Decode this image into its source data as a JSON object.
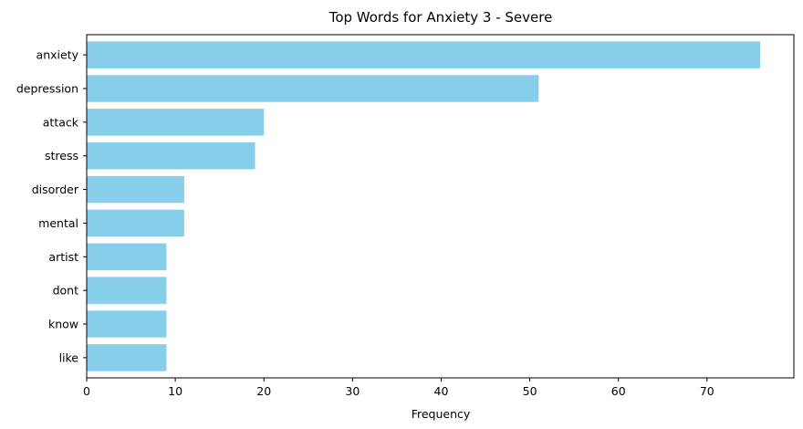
{
  "chart_data": {
    "type": "bar",
    "orientation": "horizontal",
    "title": "Top Words for Anxiety 3 - Severe",
    "xlabel": "Frequency",
    "ylabel": "",
    "categories": [
      "anxiety",
      "depression",
      "attack",
      "stress",
      "disorder",
      "mental",
      "artist",
      "dont",
      "know",
      "like"
    ],
    "values": [
      76,
      51,
      20,
      19,
      11,
      11,
      9,
      9,
      9,
      9
    ],
    "xlim": [
      0,
      79.8
    ],
    "xticks": [
      0,
      10,
      20,
      30,
      40,
      50,
      60,
      70
    ],
    "grid": false,
    "bar_color": "#87CEEB"
  }
}
